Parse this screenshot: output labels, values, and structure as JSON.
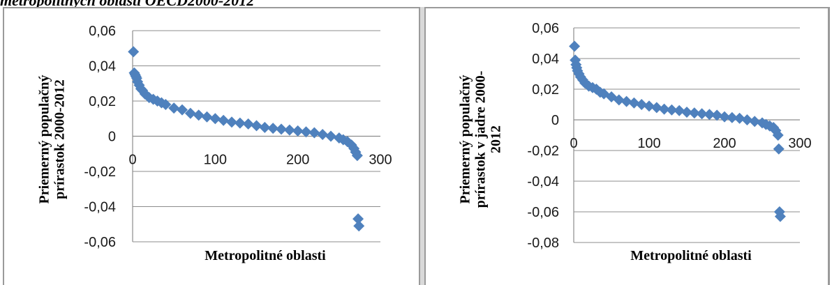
{
  "caption": "metropolitných oblastí OECD2000-2012",
  "colors": {
    "marker": "#4f81bd",
    "grid": "#8c8c8c"
  },
  "chart_data": [
    {
      "type": "scatter",
      "title": "",
      "xlabel": "Metropolitné oblasti",
      "ylabel_lines": [
        "Priemerný populačný",
        "prírastok  2000-2012"
      ],
      "xlim": [
        0,
        300
      ],
      "ylim": [
        -0.06,
        0.06
      ],
      "x_ticks": [
        0,
        100,
        200,
        300
      ],
      "x_tick_labels": [
        "0",
        "100",
        "200",
        "300"
      ],
      "y_ticks": [
        0.06,
        0.04,
        0.02,
        0,
        -0.02,
        -0.04,
        -0.06
      ],
      "y_tick_labels": [
        "0,06",
        "0,04",
        "0,02",
        "0",
        "-0,02",
        "-0,04",
        "-0,06"
      ],
      "grid": "horizontal",
      "legend": "none",
      "marker": "diamond",
      "series": [
        {
          "points": [
            [
              1,
              0.048
            ],
            [
              2,
              0.036
            ],
            [
              3,
              0.035
            ],
            [
              4,
              0.034
            ],
            [
              5,
              0.033
            ],
            [
              6,
              0.031
            ],
            [
              8,
              0.029
            ],
            [
              10,
              0.027
            ],
            [
              12,
              0.026
            ],
            [
              15,
              0.024
            ],
            [
              20,
              0.022
            ],
            [
              25,
              0.021
            ],
            [
              30,
              0.02
            ],
            [
              35,
              0.019
            ],
            [
              40,
              0.018
            ],
            [
              50,
              0.016
            ],
            [
              60,
              0.015
            ],
            [
              70,
              0.013
            ],
            [
              80,
              0.012
            ],
            [
              90,
              0.011
            ],
            [
              100,
              0.01
            ],
            [
              110,
              0.009
            ],
            [
              120,
              0.008
            ],
            [
              130,
              0.0075
            ],
            [
              140,
              0.007
            ],
            [
              150,
              0.006
            ],
            [
              160,
              0.005
            ],
            [
              170,
              0.0045
            ],
            [
              180,
              0.004
            ],
            [
              190,
              0.0035
            ],
            [
              200,
              0.003
            ],
            [
              210,
              0.0025
            ],
            [
              220,
              0.002
            ],
            [
              230,
              0.001
            ],
            [
              240,
              0.0
            ],
            [
              250,
              -0.001
            ],
            [
              255,
              -0.002
            ],
            [
              260,
              -0.003
            ],
            [
              265,
              -0.005
            ],
            [
              268,
              -0.007
            ],
            [
              270,
              -0.009
            ],
            [
              272,
              -0.011
            ],
            [
              273,
              -0.047
            ],
            [
              274,
              -0.051
            ]
          ]
        }
      ]
    },
    {
      "type": "scatter",
      "title": "",
      "xlabel": "Metropolitné oblasti",
      "ylabel_lines": [
        "Priemerný populačný",
        "prírastok v jadre 2000-",
        "2012"
      ],
      "xlim": [
        0,
        300
      ],
      "ylim": [
        -0.08,
        0.06
      ],
      "x_ticks": [
        0,
        100,
        200,
        300
      ],
      "x_tick_labels": [
        "0",
        "100",
        "200",
        "300"
      ],
      "y_ticks": [
        0.06,
        0.04,
        0.02,
        0,
        -0.02,
        -0.04,
        -0.06,
        -0.08
      ],
      "y_tick_labels": [
        "0,06",
        "0,04",
        "0,02",
        "0",
        "-0,02",
        "-0,04",
        "-0,06",
        "-0,08"
      ],
      "grid": "horizontal",
      "legend": "none",
      "marker": "diamond",
      "series": [
        {
          "points": [
            [
              1,
              0.048
            ],
            [
              2,
              0.039
            ],
            [
              3,
              0.036
            ],
            [
              4,
              0.034
            ],
            [
              5,
              0.032
            ],
            [
              7,
              0.03
            ],
            [
              9,
              0.028
            ],
            [
              12,
              0.026
            ],
            [
              15,
              0.024
            ],
            [
              20,
              0.022
            ],
            [
              25,
              0.021
            ],
            [
              30,
              0.02
            ],
            [
              35,
              0.018
            ],
            [
              40,
              0.017
            ],
            [
              50,
              0.015
            ],
            [
              60,
              0.013
            ],
            [
              70,
              0.012
            ],
            [
              80,
              0.011
            ],
            [
              90,
              0.01
            ],
            [
              100,
              0.009
            ],
            [
              110,
              0.008
            ],
            [
              120,
              0.007
            ],
            [
              130,
              0.0065
            ],
            [
              140,
              0.006
            ],
            [
              150,
              0.005
            ],
            [
              160,
              0.0045
            ],
            [
              170,
              0.004
            ],
            [
              180,
              0.0035
            ],
            [
              190,
              0.003
            ],
            [
              200,
              0.002
            ],
            [
              210,
              0.0015
            ],
            [
              220,
              0.001
            ],
            [
              230,
              0.0
            ],
            [
              240,
              -0.001
            ],
            [
              250,
              -0.002
            ],
            [
              255,
              -0.003
            ],
            [
              260,
              -0.004
            ],
            [
              265,
              -0.005
            ],
            [
              268,
              -0.007
            ],
            [
              271,
              -0.01
            ],
            [
              272,
              -0.019
            ],
            [
              273,
              -0.06
            ],
            [
              274,
              -0.063
            ]
          ]
        }
      ]
    }
  ]
}
